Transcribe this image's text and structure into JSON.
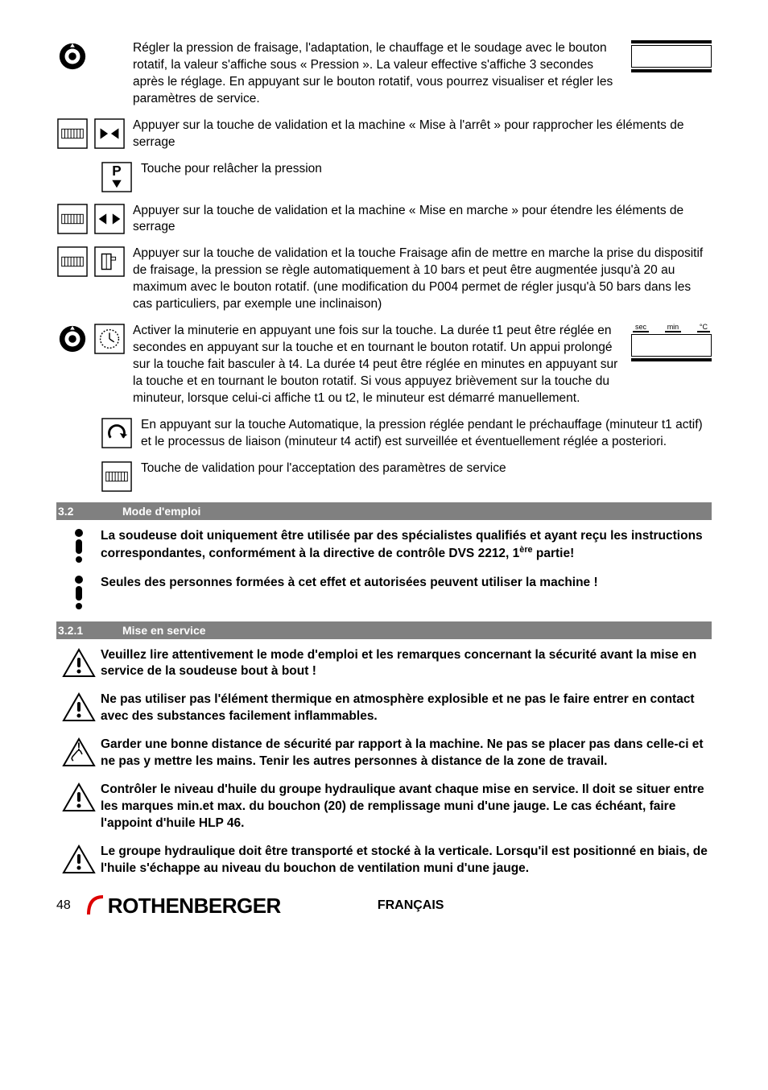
{
  "instructions": [
    {
      "icon1": "knob",
      "icon2": null,
      "text": "Régler la pression de fraisage, l'adaptation, le chauffage et le soudage avec le bouton rotatif, la valeur s'affiche sous « Pression ». La valeur effective s'affiche 3 secondes après le réglage. En appuyant sur le bouton rotatif, vous pourrez visualiser et régler les paramètres de service.",
      "right": "display1"
    },
    {
      "icon1": "enter",
      "icon2": "inward",
      "text": "Appuyer sur la touche de validation et la machine « Mise à l'arrêt » pour rapprocher les éléments de serrage"
    },
    {
      "icon1": null,
      "icon2": "p-down",
      "text": "Touche pour relâcher la pression",
      "indent": true
    },
    {
      "icon1": "enter",
      "icon2": "outward",
      "text": "Appuyer sur la touche de validation et la machine « Mise en marche » pour étendre les éléments de serrage"
    },
    {
      "icon1": "enter",
      "icon2": "milling",
      "text": "Appuyer sur la touche de validation et la touche Fraisage afin de mettre en marche la prise du dispositif de fraisage, la pression se règle automatiquement à 10 bars et peut être augmentée jusqu'à 20 au maximum avec le bouton rotatif. (une modification du P004 permet de régler jusqu'à 50 bars dans les cas particuliers, par exemple une inclinaison)"
    },
    {
      "icon1": "knob",
      "icon2": "timer",
      "text": "Activer la minuterie en appuyant une fois sur la touche. La durée t1 peut être réglée en secondes en appuyant sur la touche  et en tournant le bouton rotatif. Un appui prolongé sur la touche fait basculer à t4. La durée t4 peut être réglée en minutes en appuyant sur la touche et en tournant le bouton rotatif. Si vous appuyez brièvement sur la touche du minuteur, lorsque celui-ci affiche t1 ou t2, le minuteur est démarré manuellement.",
      "right": "display2"
    },
    {
      "icon1": null,
      "icon2": "auto",
      "text": "En appuyant sur la touche Automatique, la pression réglée pendant le préchauffage (minuteur t1 actif) et le processus de liaison (minuteur t4 actif) est surveillée et éventuellement réglée a posteriori.",
      "indent": true
    },
    {
      "icon1": null,
      "icon2": "enter",
      "text": "Touche de validation pour l'acceptation des paramètres de service",
      "indent": true
    }
  ],
  "section32": {
    "num": "3.2",
    "title": "Mode d'emploi"
  },
  "warn32a_html": "La soudeuse doit uniquement être utilisée par des spécialistes qualifiés et ayant reçu les instructions correspondantes, conformément à la directive de contrôle DVS 2212, 1<sup>ère</sup> partie!",
  "warn32b": "Seules des personnes formées à cet effet et autorisées peuvent utiliser la machine !",
  "section321": {
    "num": "3.2.1",
    "title": "Mise en service"
  },
  "warnings321": [
    {
      "type": "triangle",
      "text": "Veuillez lire attentivement le mode d'emploi et les remarques concernant la sécurité avant la mise en service de la soudeuse bout à bout !"
    },
    {
      "type": "triangle",
      "text": "Ne pas utiliser pas l'élément thermique en atmosphère explosible et ne pas le faire entrer en contact avec des substances facilement inflammables."
    },
    {
      "type": "hand",
      "text": "Garder une bonne distance de sécurité par rapport à la machine. Ne pas se placer pas dans celle-ci et ne pas y mettre les mains. Tenir les autres personnes à distance de la zone de travail."
    },
    {
      "type": "triangle",
      "text": "Contrôler le niveau d'huile du groupe hydraulique avant chaque mise en service. Il doit se situer entre les marques min.et max. du bouchon (20) de remplissage muni d'une jauge. Le cas échéant, faire l'appoint d'huile HLP 46."
    },
    {
      "type": "triangle",
      "text": "Le groupe hydraulique doit être transporté et stocké à la verticale. Lorsqu'il est positionné en biais, de l'huile s'échappe au niveau du bouchon de ventilation muni d'une jauge."
    }
  ],
  "display2_labels": [
    "sec",
    "min",
    "°C"
  ],
  "footer": {
    "page": "48",
    "brand": "ROTHENBERGER",
    "lang": "FRANÇAIS"
  }
}
